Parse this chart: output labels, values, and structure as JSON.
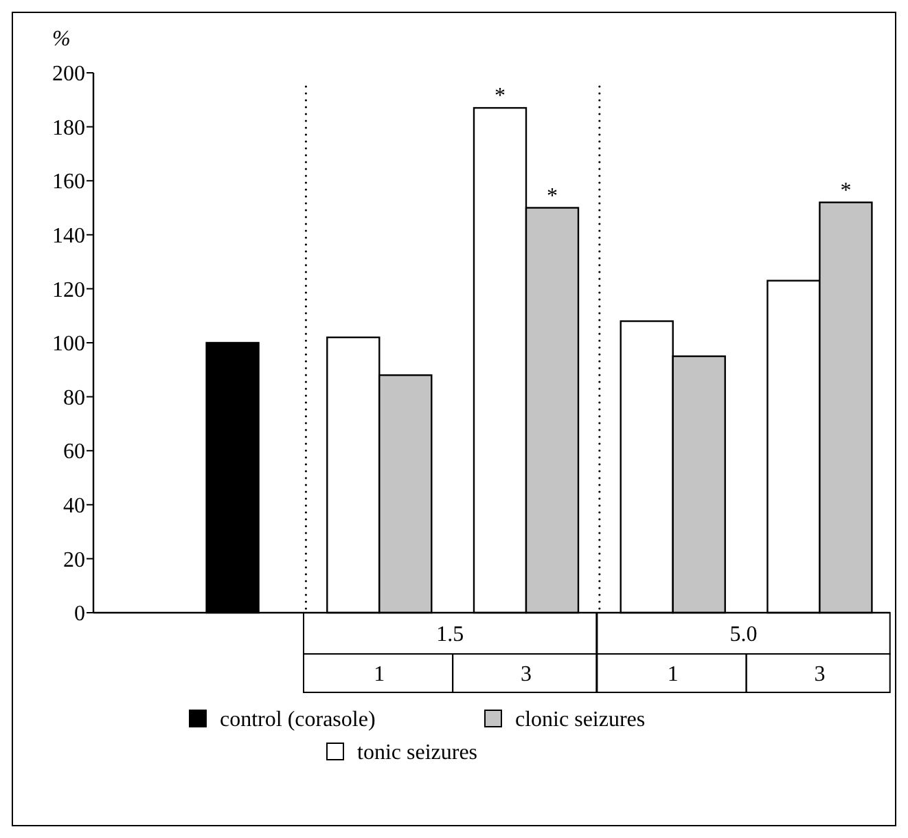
{
  "chart_data": {
    "type": "bar",
    "ylabel": "%",
    "categories": [
      null,
      "1",
      "3",
      "1",
      "3"
    ],
    "series": [
      {
        "name": "control (corasole)",
        "color": "#000000",
        "values": [
          100,
          null,
          null,
          null,
          null
        ]
      },
      {
        "name": "tonic seizures",
        "color": "#ffffff",
        "values": [
          null,
          102,
          187,
          108,
          123
        ],
        "value_labels": [
          null,
          null,
          "*",
          null,
          null
        ]
      },
      {
        "name": "clonic seizures",
        "color": "#c4c4c4",
        "values": [
          null,
          88,
          150,
          95,
          152
        ],
        "value_labels": [
          null,
          null,
          "*",
          null,
          "*"
        ]
      }
    ],
    "annotations": [
      "1.5",
      "5.0"
    ],
    "ylim": [
      0,
      200
    ],
    "yticks": [
      0,
      20,
      40,
      60,
      80,
      100,
      120,
      140,
      160,
      180,
      200
    ],
    "grid": false,
    "legend": "bottom"
  }
}
